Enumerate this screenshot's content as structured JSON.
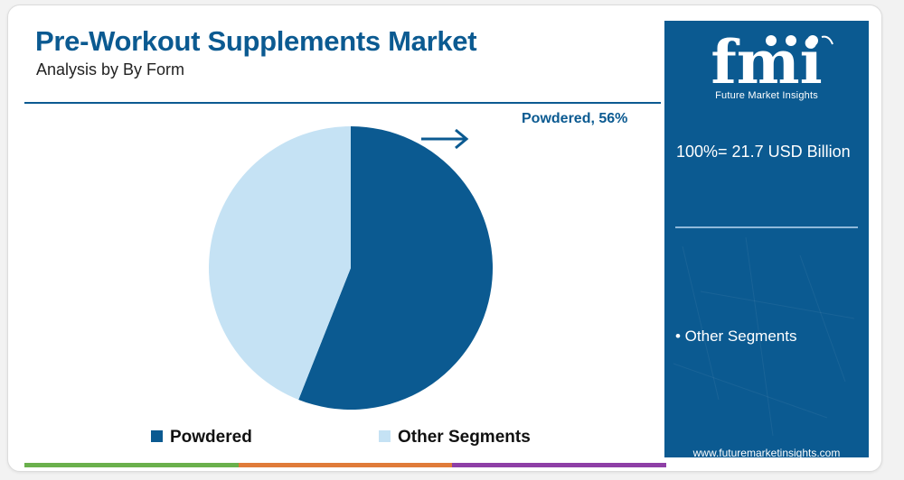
{
  "header": {
    "title": "Pre-Workout Supplements Market",
    "subtitle": "Analysis by By Form"
  },
  "chart_data": {
    "type": "pie",
    "title": "Pre-Workout Supplements Market",
    "subtitle": "Analysis by By Form",
    "categories": [
      "Powdered",
      "Other Segments"
    ],
    "values": [
      56,
      44
    ],
    "unit": "%",
    "colors": [
      "#0b5a91",
      "#c5e2f4"
    ],
    "legend": "bottom",
    "annotations": [
      {
        "category": "Powdered",
        "text": "Powdered, 56%"
      }
    ]
  },
  "legend": {
    "items": [
      {
        "label": "Powdered",
        "color": "#0b5a91"
      },
      {
        "label": "Other Segments",
        "color": "#c5e2f4"
      }
    ]
  },
  "sidebar": {
    "logo_text": "fmi",
    "logo_caption": "Future Market Insights",
    "total_text": "100%= 21.7 USD Billion",
    "segment_note": "• Other Segments",
    "website": "www.futuremarketinsights.com",
    "background": "#0b5a91"
  },
  "footer_bar": {
    "colors": [
      "#6ab04c",
      "#e07b39",
      "#8e3fa6"
    ]
  }
}
